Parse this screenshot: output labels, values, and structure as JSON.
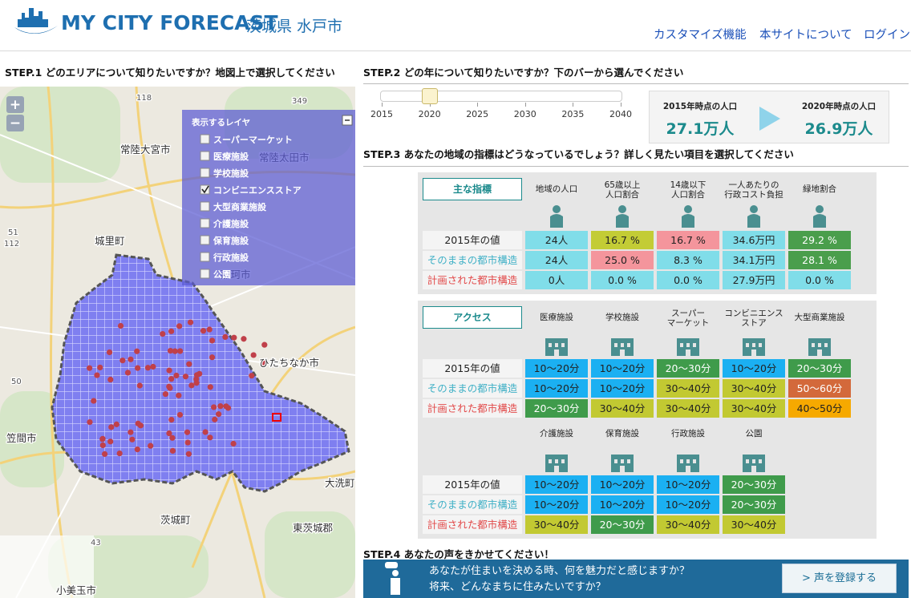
{
  "header": {
    "logo": "MY CITY FORECAST",
    "location": "茨城県 水戸市",
    "nav": [
      "カスタマイズ機能",
      "本サイトについて",
      "ログイン"
    ]
  },
  "step1": {
    "title": "STEP.1 どのエリアについて知りたいですか？地図上で選択してください",
    "map": {
      "zoom": [
        "+",
        "−"
      ],
      "layer_title": "表示するレイヤ",
      "layers": [
        {
          "label": "スーパーマーケット",
          "checked": false
        },
        {
          "label": "医療施設",
          "checked": false
        },
        {
          "label": "学校施設",
          "checked": false
        },
        {
          "label": "コンビニエンスストア",
          "checked": true
        },
        {
          "label": "大型商業施設",
          "checked": false
        },
        {
          "label": "介護施設",
          "checked": false
        },
        {
          "label": "保育施設",
          "checked": false
        },
        {
          "label": "行政施設",
          "checked": false
        },
        {
          "label": "公園",
          "checked": false
        }
      ],
      "labels": [
        "常陸大宮市",
        "常陸太田市",
        "城里町",
        "那珂市",
        "ひたちなか市",
        "笠間市",
        "大洗町",
        "茨城町",
        "東茨城郡",
        "小美玉市",
        "118",
        "349",
        "51",
        "112",
        "50",
        "43"
      ]
    }
  },
  "step2": {
    "title": "STEP.2 どの年について知りたいですか？下のバーから選んでください",
    "slider": {
      "ticks": [
        2015,
        2020,
        2025,
        2030,
        2035,
        2040
      ],
      "value": 2020
    },
    "population": [
      {
        "label": "2015年時点の人口",
        "value": "27.1万人"
      },
      {
        "label": "2020年時点の人口",
        "value": "26.9万人"
      }
    ]
  },
  "step3": {
    "title": "STEP.3 あなたの地域の指標はどうなっているでしょう？詳しく見たい項目を選択してください",
    "tables": [
      {
        "heading": "主な指標",
        "columns": [
          [
            "地域の人口"
          ],
          [
            "65歳以上",
            "人口割合"
          ],
          [
            "14歳以下",
            "人口割合"
          ],
          [
            "一人あたりの",
            "行政コスト負担"
          ],
          [
            "緑地割合"
          ]
        ],
        "rows": [
          {
            "label": "2015年の値",
            "cells": [
              {
                "text": "24人",
                "color": "#80dde9"
              },
              {
                "text": "16.7 %",
                "color": "#c3cc35"
              },
              {
                "text": "16.7 %",
                "color": "#f4959c"
              },
              {
                "text": "34.6万円",
                "color": "#80dde9"
              },
              {
                "text": "29.2 %",
                "color": "#4a9e4c"
              }
            ]
          },
          {
            "label": "そのままの都市構造",
            "cells": [
              {
                "text": "24人",
                "color": "#80dde9"
              },
              {
                "text": "25.0 %",
                "color": "#f4959c"
              },
              {
                "text": "8.3 %",
                "color": "#80dde9"
              },
              {
                "text": "34.1万円",
                "color": "#80dde9"
              },
              {
                "text": "28.1 %",
                "color": "#4a9e4c"
              }
            ]
          },
          {
            "label": "計画された都市構造",
            "cells": [
              {
                "text": "0人",
                "color": "#80dde9"
              },
              {
                "text": "0.0 %",
                "color": "#80dde9"
              },
              {
                "text": "0.0 %",
                "color": "#80dde9"
              },
              {
                "text": "27.9万円",
                "color": "#80dde9"
              },
              {
                "text": "0.0 %",
                "color": "#80dde9"
              }
            ]
          }
        ]
      },
      {
        "heading": "アクセス",
        "columns": [
          [
            "医療施設"
          ],
          [
            "学校施設"
          ],
          [
            "スーパー",
            "マーケット"
          ],
          [
            "コンビニエンス",
            "ストア"
          ],
          [
            "大型商業施設"
          ]
        ],
        "rows": [
          {
            "label": "2015年の値",
            "cells": [
              {
                "text": "10〜20分",
                "color": "#1bb0f2"
              },
              {
                "text": "10〜20分",
                "color": "#1bb0f2"
              },
              {
                "text": "20〜30分",
                "color": "#3f9b4b"
              },
              {
                "text": "10〜20分",
                "color": "#1bb0f2"
              },
              {
                "text": "20〜30分",
                "color": "#3f9b4b"
              }
            ]
          },
          {
            "label": "そのままの都市構造",
            "cells": [
              {
                "text": "10〜20分",
                "color": "#1bb0f2"
              },
              {
                "text": "10〜20分",
                "color": "#1bb0f2"
              },
              {
                "text": "30〜40分",
                "color": "#c2c932"
              },
              {
                "text": "30〜40分",
                "color": "#c2c932"
              },
              {
                "text": "50〜60分",
                "color": "#d3693b"
              }
            ]
          },
          {
            "label": "計画された都市構造",
            "cells": [
              {
                "text": "20〜30分",
                "color": "#3f9b4b"
              },
              {
                "text": "30〜40分",
                "color": "#c2c932"
              },
              {
                "text": "30〜40分",
                "color": "#c2c932"
              },
              {
                "text": "30〜40分",
                "color": "#c2c932"
              },
              {
                "text": "40〜50分",
                "color": "#f6a900"
              }
            ]
          }
        ]
      },
      {
        "columns": [
          [
            "介護施設"
          ],
          [
            "保育施設"
          ],
          [
            "行政施設"
          ],
          [
            "公園"
          ]
        ],
        "rows": [
          {
            "label": "2015年の値",
            "cells": [
              {
                "text": "10〜20分",
                "color": "#1bb0f2"
              },
              {
                "text": "10〜20分",
                "color": "#1bb0f2"
              },
              {
                "text": "10〜20分",
                "color": "#1bb0f2"
              },
              {
                "text": "20〜30分",
                "color": "#3f9b4b"
              }
            ]
          },
          {
            "label": "そのままの都市構造",
            "cells": [
              {
                "text": "10〜20分",
                "color": "#1bb0f2"
              },
              {
                "text": "10〜20分",
                "color": "#1bb0f2"
              },
              {
                "text": "10〜20分",
                "color": "#1bb0f2"
              },
              {
                "text": "20〜30分",
                "color": "#3f9b4b"
              }
            ]
          },
          {
            "label": "計画された都市構造",
            "cells": [
              {
                "text": "30〜40分",
                "color": "#c2c932"
              },
              {
                "text": "20〜30分",
                "color": "#3f9b4b"
              },
              {
                "text": "30〜40分",
                "color": "#c2c932"
              },
              {
                "text": "30〜40分",
                "color": "#c2c932"
              }
            ]
          }
        ]
      }
    ]
  },
  "step4": {
    "title": "STEP.4 あなたの声をきかせてください！",
    "message": [
      "あなたが住まいを決める時、何を魅力だと感じますか？",
      "将来、どんなまちに住みたいですか？"
    ],
    "button": "> 声を登録する"
  }
}
